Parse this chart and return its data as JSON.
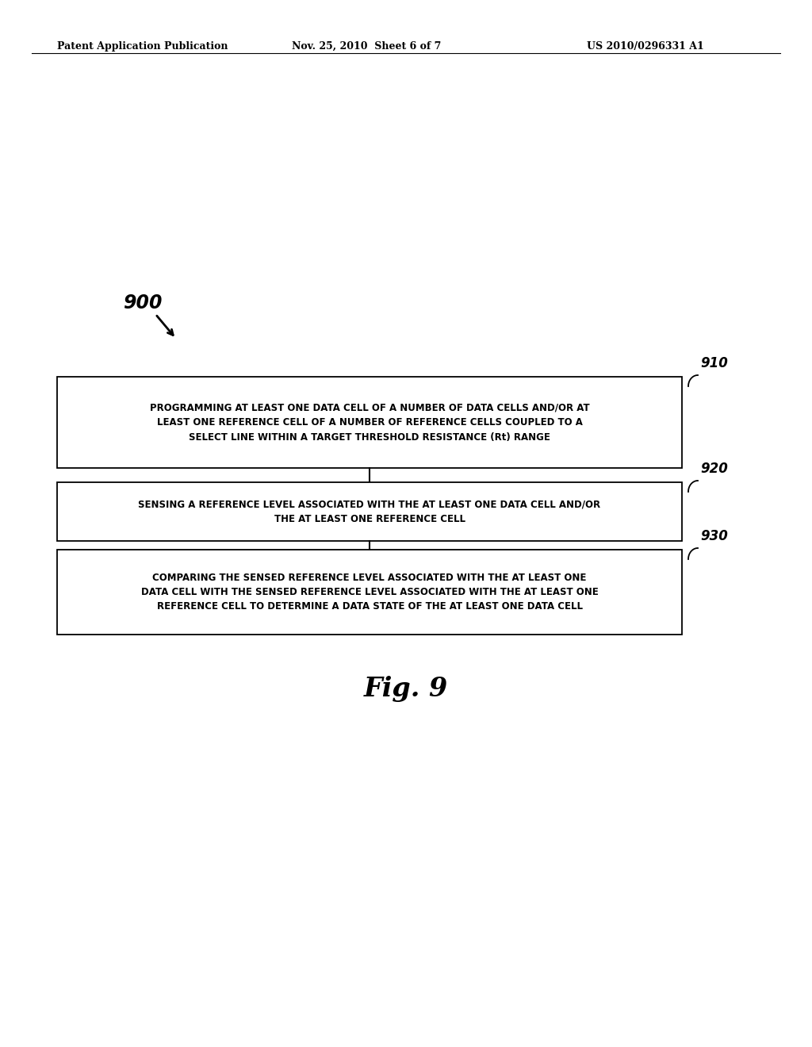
{
  "header_left": "Patent Application Publication",
  "header_center": "Nov. 25, 2010  Sheet 6 of 7",
  "header_right": "US 2010/0296331 A1",
  "figure_label": "900",
  "fig_caption": "Fig. 9",
  "box1_label": "910",
  "box2_label": "920",
  "box3_label": "930",
  "box1_line1": "PROGRAMMING AT LEAST ONE DATA CELL OF A NUMBER OF DATA CELLS AND/OR AT",
  "box1_line2": "LEAST ONE REFERENCE CELL OF A NUMBER OF REFERENCE CELLS COUPLED TO A",
  "box1_line3": "SELECT LINE WITHIN A TARGET THRESHOLD RESISTANCE (R",
  "box1_line3b": "t",
  "box1_line3c": ") RANGE",
  "box2_line1": "SENSING A REFERENCE LEVEL ASSOCIATED WITH THE AT LEAST ONE DATA CELL AND/OR",
  "box2_line2": "THE AT LEAST ONE REFERENCE CELL",
  "box3_line1": "COMPARING THE SENSED REFERENCE LEVEL ASSOCIATED WITH THE AT LEAST ONE",
  "box3_line2": "DATA CELL WITH THE SENSED REFERENCE LEVEL ASSOCIATED WITH THE AT LEAST ONE",
  "box3_line3": "REFERENCE CELL TO DETERMINE A DATA STATE OF THE AT LEAST ONE DATA CELL",
  "bg_color": "#ffffff",
  "text_color": "#000000",
  "box_edge_color": "#000000",
  "box_fill_color": "#ffffff"
}
